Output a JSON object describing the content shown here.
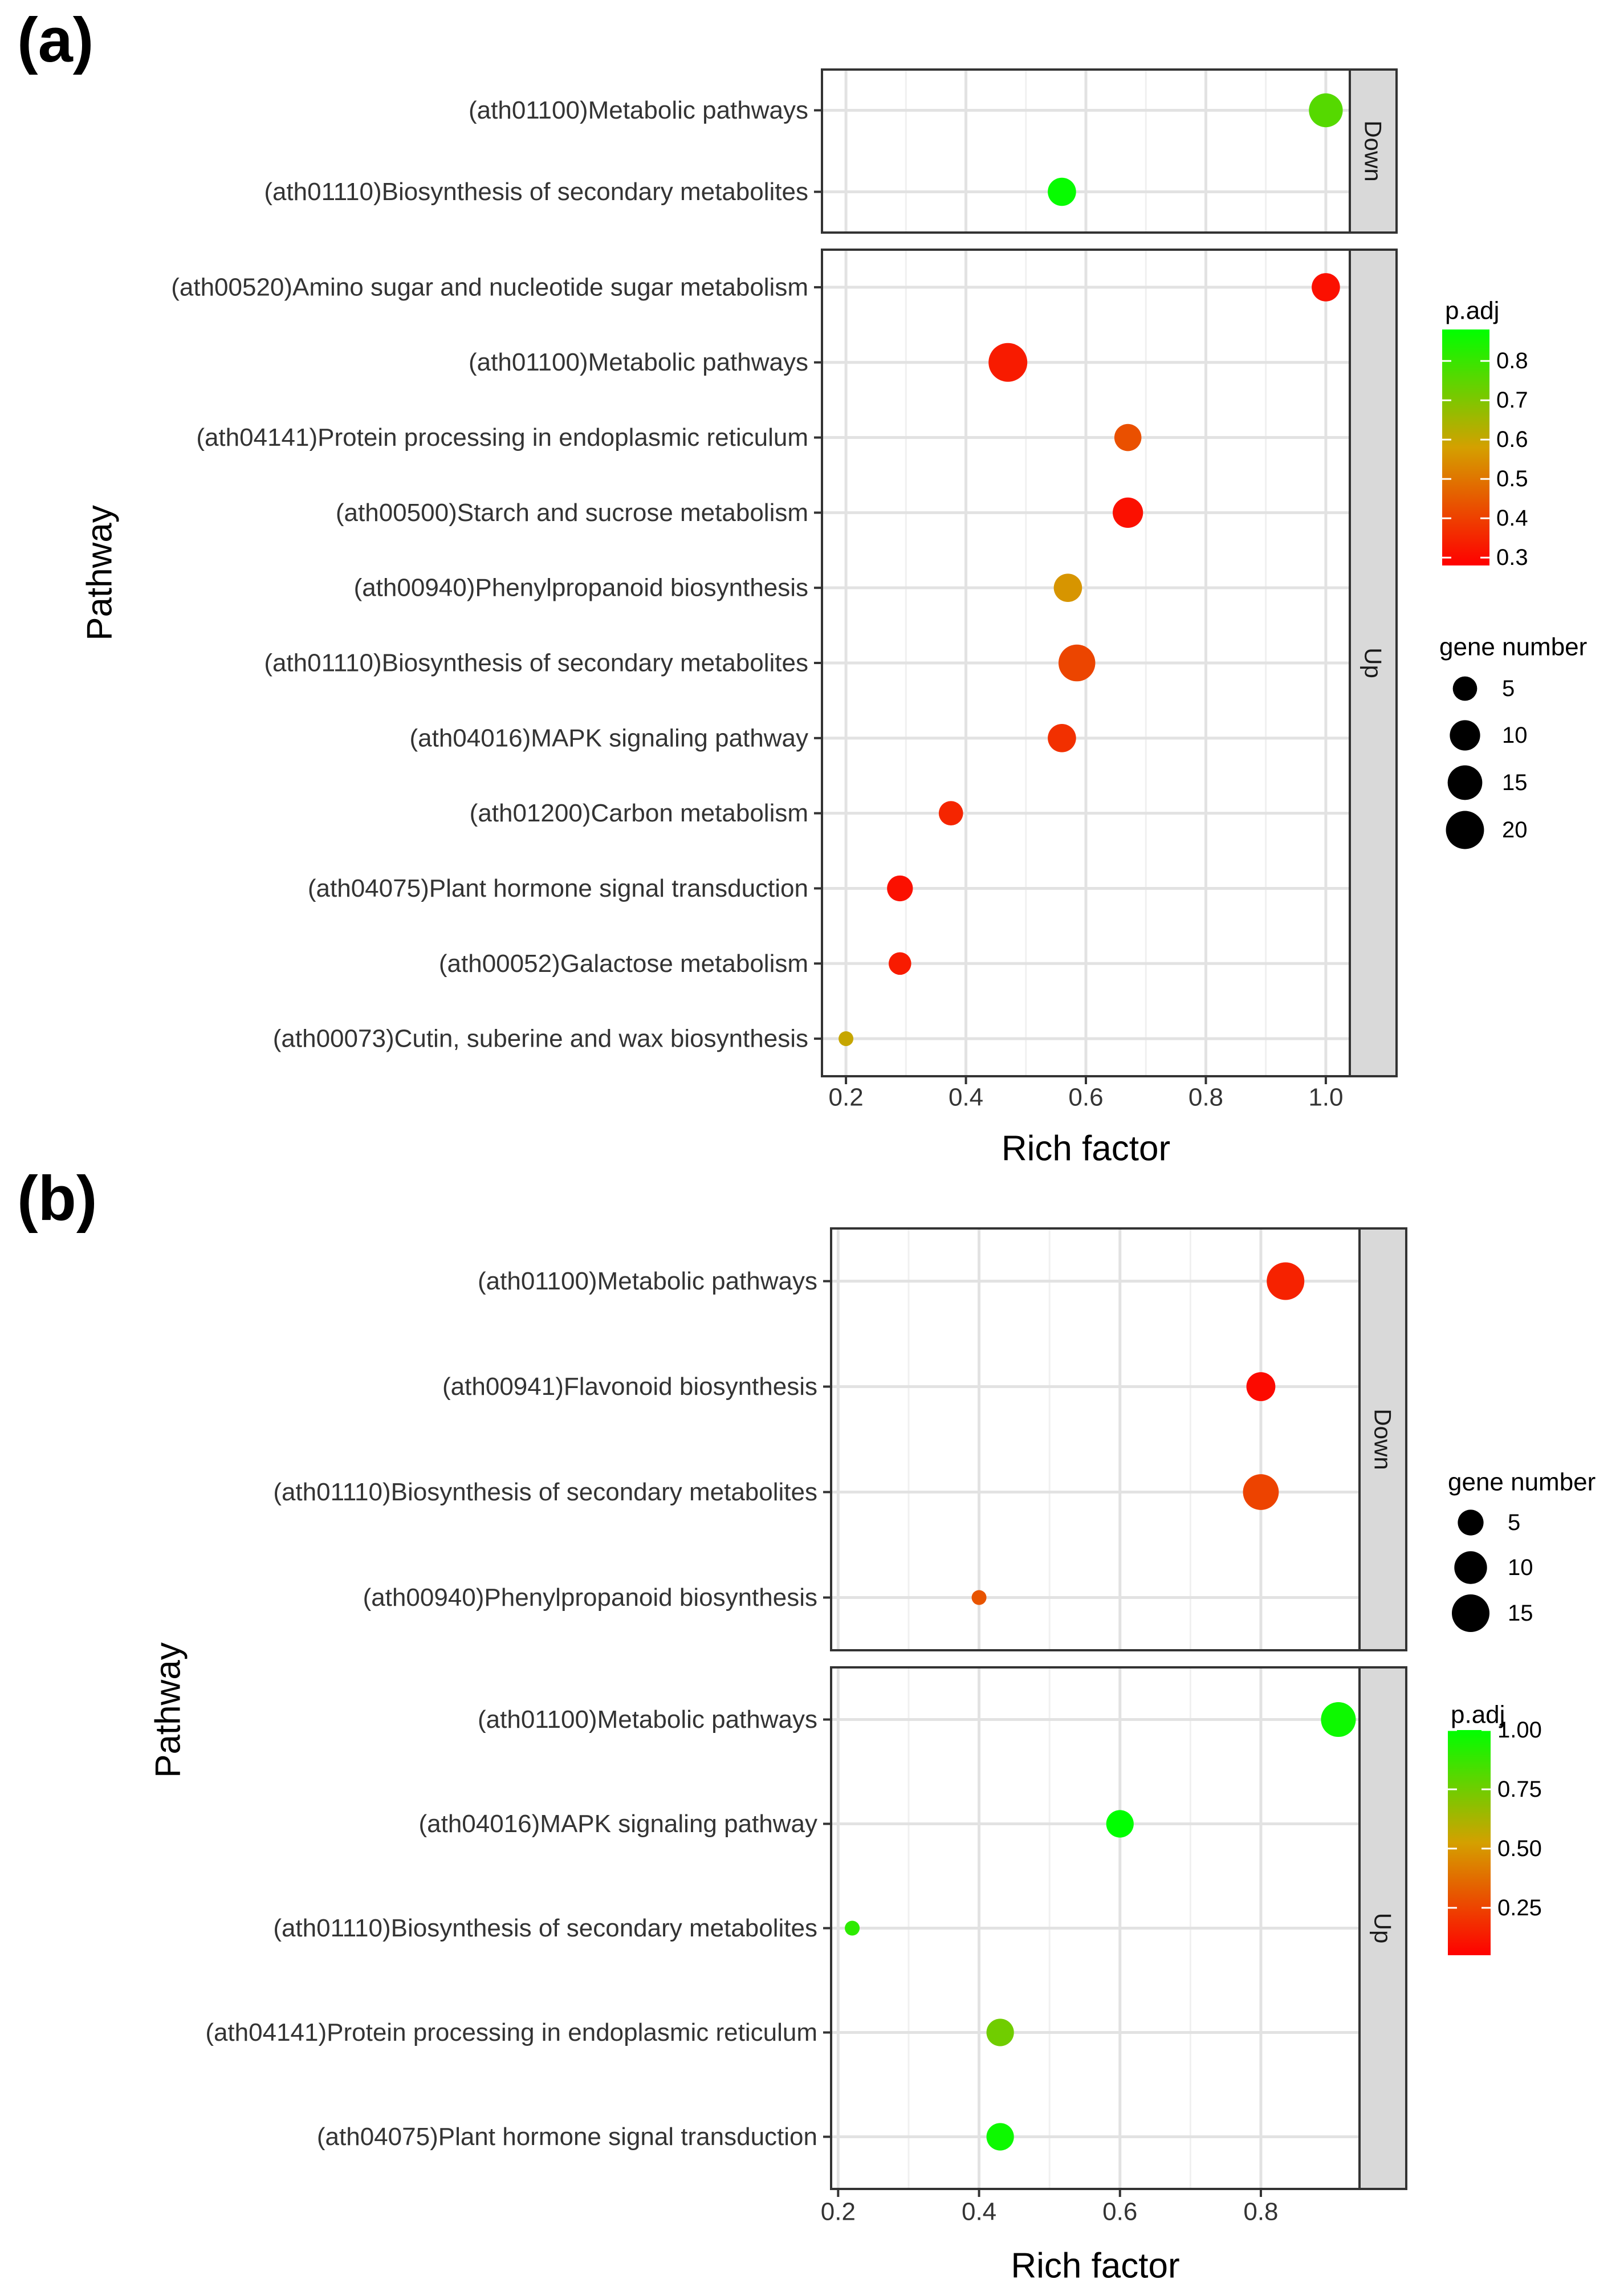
{
  "panels": [
    {
      "label": "(a)",
      "y_axis_title": "Pathway",
      "x_axis_title": "Rich factor",
      "colorbar_title": "p.adj",
      "size_legend_title": "gene number"
    },
    {
      "label": "(b)",
      "y_axis_title": "Pathway",
      "x_axis_title": "Rich factor",
      "colorbar_title": "p.adj",
      "size_legend_title": "gene number"
    }
  ],
  "chart_data": [
    {
      "type": "scatter",
      "subtype": "bubble",
      "title": "",
      "xlabel": "Rich factor",
      "ylabel": "Pathway",
      "xlim": [
        0.16,
        1.04
      ],
      "x_ticks": [
        0.2,
        0.4,
        0.6,
        0.8,
        1.0
      ],
      "x_tick_labels": [
        "0.2",
        "0.4",
        "0.6",
        "0.8",
        "1.0"
      ],
      "grid": true,
      "legend_position": "right",
      "color": {
        "title": "p.adj",
        "range": [
          0.28,
          0.88
        ],
        "ticks": [
          0.3,
          0.4,
          0.5,
          0.6,
          0.7,
          0.8
        ],
        "tick_labels": [
          "0.3",
          "0.4",
          "0.5",
          "0.6",
          "0.7",
          "0.8"
        ],
        "low_color": "#ff0000",
        "mid_color": "#d4a000",
        "high_color": "#00ff00"
      },
      "size": {
        "title": "gene number",
        "ticks": [
          5,
          10,
          15,
          20
        ],
        "tick_labels": [
          "5",
          "10",
          "15",
          "20"
        ]
      },
      "facets": [
        {
          "name": "Down",
          "categories": [
            "(ath01100)Metabolic pathways",
            "(ath01110)Biosynthesis of secondary metabolites"
          ],
          "points": [
            {
              "y": "(ath01100)Metabolic pathways",
              "x": 1.0,
              "padj": 0.76,
              "genes": 14
            },
            {
              "y": "(ath01110)Biosynthesis of secondary metabolites",
              "x": 0.56,
              "padj": 0.87,
              "genes": 8
            }
          ]
        },
        {
          "name": "Up",
          "categories": [
            "(ath00520)Amino sugar and nucleotide sugar metabolism",
            "(ath01100)Metabolic pathways",
            "(ath04141)Protein processing in endoplasmic reticulum",
            "(ath00500)Starch and sucrose metabolism",
            "(ath00940)Phenylpropanoid biosynthesis",
            "(ath01110)Biosynthesis of secondary metabolites",
            "(ath04016)MAPK signaling pathway",
            "(ath01200)Carbon metabolism",
            "(ath04075)Plant hormone signal transduction",
            "(ath00052)Galactose metabolism",
            "(ath00073)Cutin, suberine and wax biosynthesis"
          ],
          "points": [
            {
              "y": "(ath00520)Amino sugar and nucleotide sugar metabolism",
              "x": 1.0,
              "padj": 0.31,
              "genes": 8
            },
            {
              "y": "(ath01100)Metabolic pathways",
              "x": 0.47,
              "padj": 0.33,
              "genes": 21
            },
            {
              "y": "(ath04141)Protein processing in endoplasmic reticulum",
              "x": 0.67,
              "padj": 0.43,
              "genes": 7
            },
            {
              "y": "(ath00500)Starch and sucrose metabolism",
              "x": 0.67,
              "padj": 0.31,
              "genes": 10
            },
            {
              "y": "(ath00940)Phenylpropanoid biosynthesis",
              "x": 0.57,
              "padj": 0.56,
              "genes": 8
            },
            {
              "y": "(ath01110)Biosynthesis of secondary metabolites",
              "x": 0.585,
              "padj": 0.41,
              "genes": 18
            },
            {
              "y": "(ath04016)MAPK signaling pathway",
              "x": 0.56,
              "padj": 0.37,
              "genes": 8
            },
            {
              "y": "(ath01200)Carbon metabolism",
              "x": 0.375,
              "padj": 0.35,
              "genes": 5
            },
            {
              "y": "(ath04075)Plant hormone signal transduction",
              "x": 0.29,
              "padj": 0.31,
              "genes": 6
            },
            {
              "y": "(ath00052)Galactose metabolism",
              "x": 0.29,
              "padj": 0.33,
              "genes": 4
            },
            {
              "y": "(ath00073)Cutin, suberine and wax biosynthesis",
              "x": 0.2,
              "padj": 0.6,
              "genes": 2
            }
          ]
        }
      ]
    },
    {
      "type": "scatter",
      "subtype": "bubble",
      "title": "",
      "xlabel": "Rich factor",
      "ylabel": "Pathway",
      "xlim": [
        0.19,
        0.94
      ],
      "x_ticks": [
        0.2,
        0.4,
        0.6,
        0.8
      ],
      "x_tick_labels": [
        "0.2",
        "0.4",
        "0.6",
        "0.8"
      ],
      "grid": true,
      "legend_position": "right",
      "color": {
        "title": "p.adj",
        "range": [
          0.05,
          1.0
        ],
        "ticks": [
          0.25,
          0.5,
          0.75,
          1.0
        ],
        "tick_labels": [
          "0.25",
          "0.50",
          "0.75",
          "1.00"
        ],
        "low_color": "#ff0000",
        "mid_color": "#d4a000",
        "high_color": "#00ff00"
      },
      "size": {
        "title": "gene number",
        "ticks": [
          5,
          10,
          15
        ],
        "tick_labels": [
          "5",
          "10",
          "15"
        ]
      },
      "facets": [
        {
          "name": "Down",
          "categories": [
            "(ath01100)Metabolic pathways",
            "(ath00941)Flavonoid biosynthesis",
            "(ath01110)Biosynthesis of secondary metabolites",
            "(ath00940)Phenylpropanoid biosynthesis"
          ],
          "points": [
            {
              "y": "(ath01100)Metabolic pathways",
              "x": 0.835,
              "padj": 0.15,
              "genes": 15
            },
            {
              "y": "(ath00941)Flavonoid biosynthesis",
              "x": 0.8,
              "padj": 0.08,
              "genes": 7
            },
            {
              "y": "(ath01110)Biosynthesis of secondary metabolites",
              "x": 0.8,
              "padj": 0.25,
              "genes": 13
            },
            {
              "y": "(ath00940)Phenylpropanoid biosynthesis",
              "x": 0.4,
              "padj": 0.3,
              "genes": 2
            }
          ]
        },
        {
          "name": "Up",
          "categories": [
            "(ath01100)Metabolic pathways",
            "(ath04016)MAPK signaling pathway",
            "(ath01110)Biosynthesis of secondary metabolites",
            "(ath04141)Protein processing in endoplasmic reticulum",
            "(ath04075)Plant hormone signal transduction"
          ],
          "points": [
            {
              "y": "(ath01100)Metabolic pathways",
              "x": 0.91,
              "padj": 0.97,
              "genes": 12
            },
            {
              "y": "(ath04016)MAPK signaling pathway",
              "x": 0.6,
              "padj": 1.0,
              "genes": 6
            },
            {
              "y": "(ath01110)Biosynthesis of secondary metabolites",
              "x": 0.22,
              "padj": 0.9,
              "genes": 2
            },
            {
              "y": "(ath04141)Protein processing in endoplasmic reticulum",
              "x": 0.43,
              "padj": 0.75,
              "genes": 6
            },
            {
              "y": "(ath04075)Plant hormone signal transduction",
              "x": 0.43,
              "padj": 0.97,
              "genes": 6
            }
          ]
        }
      ]
    }
  ]
}
